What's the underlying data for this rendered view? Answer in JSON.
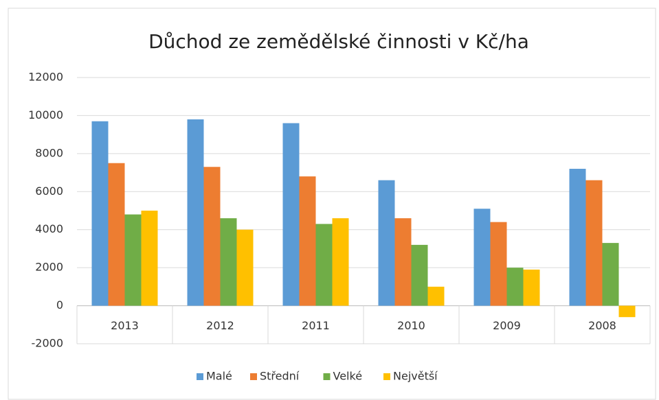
{
  "chart_data": {
    "type": "bar",
    "title": "Důchod ze zemědělské činnosti v Kč/ha",
    "categories": [
      "2013",
      "2012",
      "2011",
      "2010",
      "2009",
      "2008"
    ],
    "series": [
      {
        "name": "Malé",
        "color": "#5b9bd5",
        "values": [
          9700,
          9800,
          9600,
          6600,
          5100,
          7200
        ]
      },
      {
        "name": "Střední",
        "color": "#ed7d31",
        "values": [
          7500,
          7300,
          6800,
          4600,
          4400,
          6600
        ]
      },
      {
        "name": "Velké",
        "color": "#70ad47",
        "values": [
          4800,
          4600,
          4300,
          3200,
          2000,
          3300
        ]
      },
      {
        "name": "Největší",
        "color": "#ffc000",
        "values": [
          5000,
          4000,
          4600,
          1000,
          1900,
          -600
        ]
      }
    ],
    "ylim": [
      -2000,
      12000
    ],
    "yticks": [
      -2000,
      0,
      2000,
      4000,
      6000,
      8000,
      10000,
      12000
    ],
    "grid": true,
    "legend": "bottom"
  }
}
